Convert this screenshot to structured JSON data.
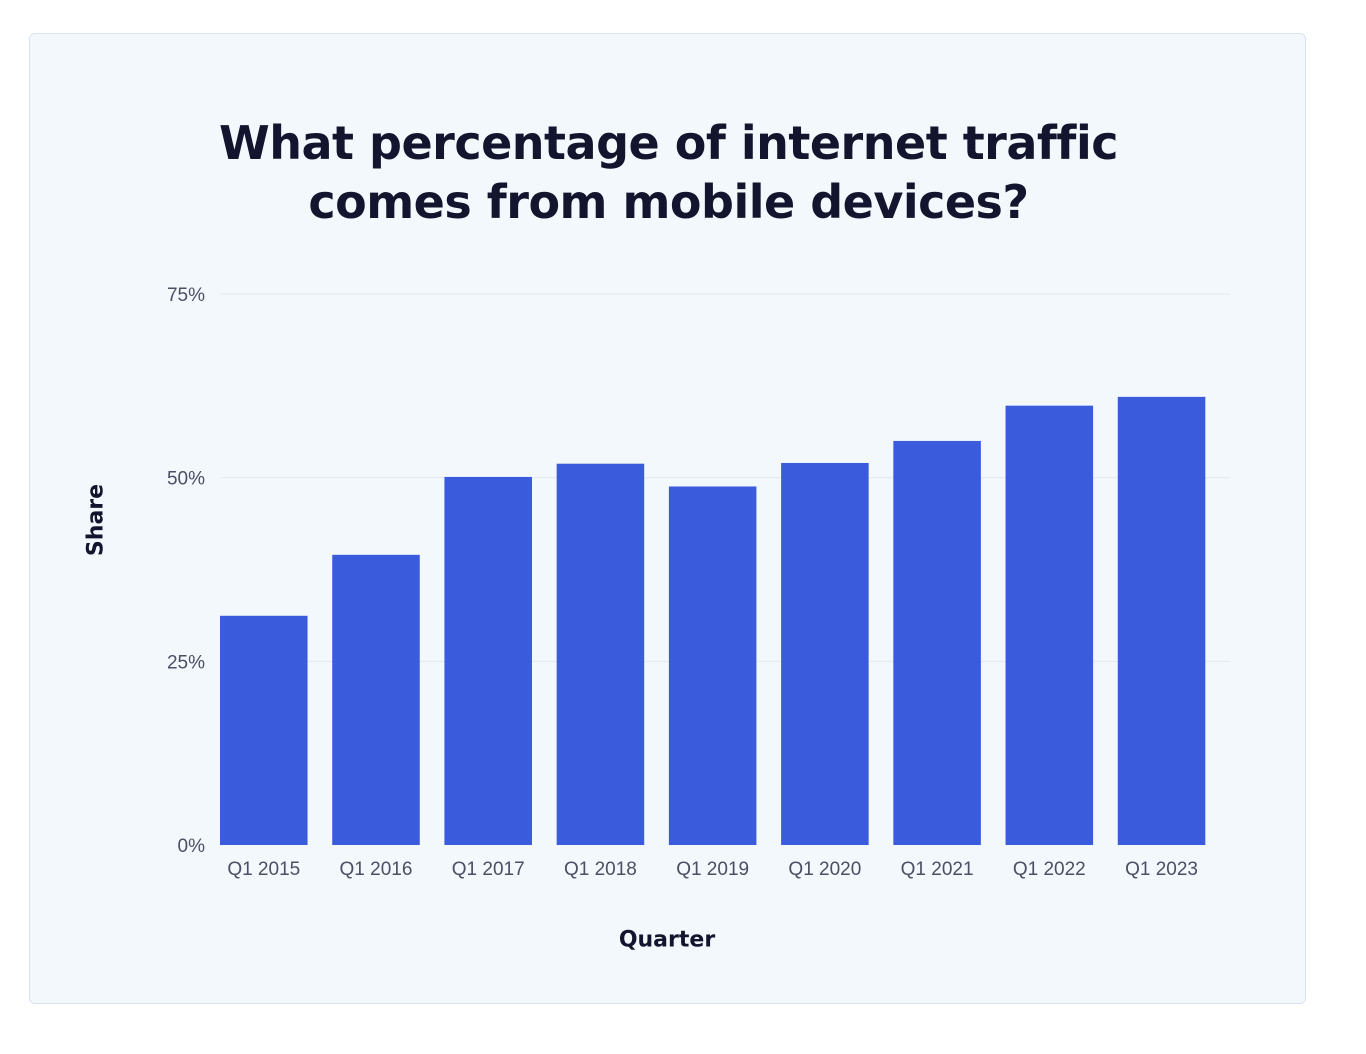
{
  "chart_data": {
    "type": "bar",
    "title": [
      "What percentage of internet traffic",
      "comes from mobile devices?"
    ],
    "xlabel": "Quarter",
    "ylabel": "Share",
    "categories": [
      "Q1 2015",
      "Q1 2016",
      "Q1 2017",
      "Q1 2018",
      "Q1 2019",
      "Q1 2020",
      "Q1 2021",
      "Q1 2022",
      "Q1 2023"
    ],
    "values": [
      31.2,
      39.5,
      50.1,
      51.9,
      48.8,
      52.0,
      55.0,
      59.8,
      61.0
    ],
    "ylim": [
      0,
      75
    ],
    "yticks": [
      0,
      25,
      50,
      75
    ],
    "ytick_labels": [
      "0%",
      "25%",
      "50%",
      "75%"
    ],
    "grid": true,
    "legend": "none",
    "colors": {
      "bar": "#3a5bdc",
      "grid": "#e3e9f0",
      "card_background": "#f3f8fc",
      "card_border": "#d7e3f1",
      "text": "#13152e",
      "tick_text": "#4a4f63"
    }
  }
}
